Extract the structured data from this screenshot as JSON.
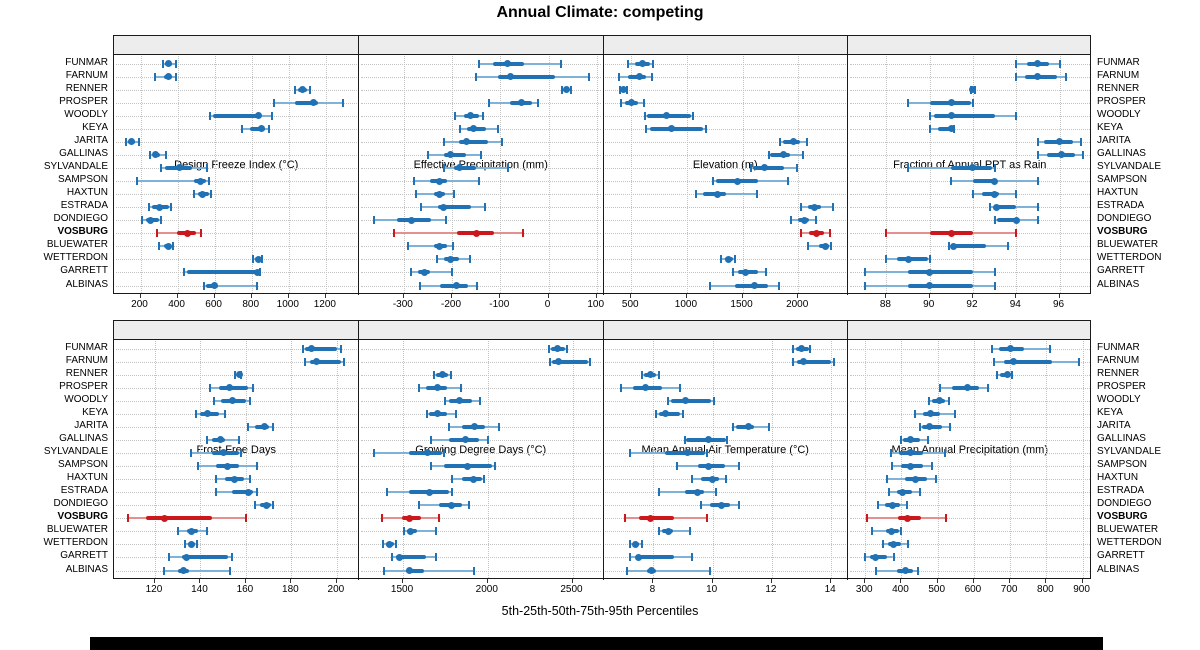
{
  "title": "Annual Climate: competing",
  "caption": "5th-25th-50th-75th-95th Percentiles",
  "colors": {
    "accent_blue": "#2171b5",
    "accent_blue_light": "#7fb2d8",
    "highlight_red": "#cb181d",
    "highlight_red_light": "#e58f8f",
    "strip_bg": "#ededed",
    "panel_border": "#1a1a1a",
    "grid": "#c3c3c3"
  },
  "sites": [
    "FUNMAR",
    "FARNUM",
    "RENNER",
    "PROSPER",
    "WOODLY",
    "KEYA",
    "JARITA",
    "GALLINAS",
    "SYLVANDALE",
    "SAMPSON",
    "HAXTUN",
    "ESTRADA",
    "DONDIEGO",
    "VOSBURG",
    "BLUEWATER",
    "WETTERDON",
    "GARRETT",
    "ALBINAS"
  ],
  "highlight_site": "VOSBURG",
  "chart_data": {
    "type": "dotplot-percentiles",
    "percentile_labels": [
      "5th",
      "25th",
      "50th",
      "75th",
      "95th"
    ],
    "panels": [
      {
        "id": "design-freeze-index",
        "title": "Design Freeze Index (°C)",
        "domain": [
          57,
          1376
        ],
        "ticks": [
          200,
          400,
          600,
          800,
          1000,
          1200
        ],
        "values": [
          [
            322,
            333,
            353,
            371,
            389
          ],
          [
            280,
            326,
            353,
            371,
            389
          ],
          [
            1032,
            1050,
            1076,
            1100,
            1116
          ],
          [
            921,
            1035,
            1133,
            1156,
            1295
          ],
          [
            576,
            590,
            834,
            851,
            910
          ],
          [
            749,
            793,
            855,
            869,
            891
          ],
          [
            124,
            135,
            150,
            171,
            192
          ],
          [
            252,
            266,
            281,
            306,
            340
          ],
          [
            312,
            334,
            412,
            480,
            560
          ],
          [
            181,
            489,
            522,
            554,
            569
          ],
          [
            490,
            509,
            536,
            571,
            582
          ],
          [
            245,
            264,
            300,
            352,
            365
          ],
          [
            210,
            228,
            254,
            300,
            310
          ],
          [
            291,
            398,
            454,
            497,
            528
          ],
          [
            300,
            327,
            350,
            366,
            374
          ],
          [
            809,
            820,
            836,
            849,
            856
          ],
          [
            437,
            452,
            830,
            836,
            845
          ],
          [
            541,
            552,
            600,
            619,
            827
          ]
        ]
      },
      {
        "id": "effective-precipitation",
        "title": "Effective Precipitation (mm)",
        "domain": [
          -394,
          113
        ],
        "ticks": [
          -300,
          -200,
          -100,
          0,
          100
        ],
        "values": [
          [
            -145,
            -116,
            -85,
            -51,
            25
          ],
          [
            -151,
            -104,
            -79,
            14,
            83
          ],
          [
            27,
            31,
            37,
            43,
            47
          ],
          [
            -124,
            -79,
            -57,
            -35,
            -21
          ],
          [
            -193,
            -176,
            -162,
            -145,
            -136
          ],
          [
            -184,
            -169,
            -155,
            -129,
            -104
          ],
          [
            -216,
            -186,
            -171,
            -125,
            -97
          ],
          [
            -249,
            -217,
            -203,
            -172,
            -140
          ],
          [
            -217,
            -197,
            -185,
            -151,
            -84
          ],
          [
            -279,
            -245,
            -226,
            -210,
            -144
          ],
          [
            -274,
            -238,
            -226,
            -215,
            -196
          ],
          [
            -265,
            -230,
            -218,
            -161,
            -131
          ],
          [
            -361,
            -314,
            -285,
            -244,
            -212
          ],
          [
            -321,
            -190,
            -150,
            -114,
            -52
          ],
          [
            -292,
            -238,
            -226,
            -210,
            -198
          ],
          [
            -231,
            -216,
            -203,
            -186,
            -162
          ],
          [
            -286,
            -270,
            -258,
            -245,
            -200
          ],
          [
            -266,
            -224,
            -190,
            -166,
            -148
          ]
        ]
      },
      {
        "id": "elevation",
        "title": "Elevation (m)",
        "domain": [
          246,
          2443
        ],
        "ticks": [
          500,
          1000,
          1500,
          2000
        ],
        "values": [
          [
            470,
            530,
            600,
            665,
            695
          ],
          [
            390,
            470,
            570,
            635,
            690
          ],
          [
            400,
            413,
            432,
            450,
            462
          ],
          [
            410,
            440,
            500,
            560,
            610
          ],
          [
            620,
            645,
            815,
            1038,
            1055
          ],
          [
            630,
            668,
            865,
            1142,
            1172
          ],
          [
            1832,
            1862,
            1957,
            2012,
            2078
          ],
          [
            1737,
            1748,
            1868,
            1922,
            2046
          ],
          [
            1580,
            1594,
            1698,
            1876,
            1990
          ],
          [
            1235,
            1263,
            1451,
            1638,
            1905
          ],
          [
            1085,
            1144,
            1278,
            1353,
            1629
          ],
          [
            2026,
            2086,
            2146,
            2206,
            2316
          ],
          [
            1936,
            1996,
            2056,
            2101,
            2161
          ],
          [
            2028,
            2101,
            2161,
            2236,
            2288
          ],
          [
            2086,
            2190,
            2245,
            2281,
            2296
          ],
          [
            1309,
            1338,
            1376,
            1414,
            1429
          ],
          [
            1414,
            1458,
            1527,
            1638,
            1712
          ],
          [
            1205,
            1428,
            1608,
            1729,
            1831
          ]
        ]
      },
      {
        "id": "fraction-ppt-rain",
        "title": "Fraction of Annual PPT as Rain",
        "domain": [
          86.2,
          97.5
        ],
        "ticks": [
          88,
          90,
          92,
          94,
          96
        ],
        "values": [
          [
            94.0,
            94.5,
            95.0,
            95.5,
            96.0
          ],
          [
            94.0,
            94.4,
            95.0,
            95.9,
            96.3
          ],
          [
            91.9,
            92.0,
            92.0,
            92.0,
            92.1
          ],
          [
            89.0,
            90.0,
            91.0,
            91.9,
            92.0
          ],
          [
            90.0,
            90.2,
            91.0,
            93.0,
            94.0
          ],
          [
            90.0,
            90.4,
            91.0,
            91.0,
            91.1
          ],
          [
            95.0,
            95.3,
            96.0,
            96.6,
            97.0
          ],
          [
            95.0,
            95.4,
            96.1,
            96.7,
            97.1
          ],
          [
            89.0,
            91.0,
            92.0,
            92.9,
            93.0
          ],
          [
            91.0,
            92.0,
            93.0,
            93.1,
            95.0
          ],
          [
            92.0,
            92.4,
            93.0,
            93.2,
            94.0
          ],
          [
            92.8,
            93.0,
            93.1,
            94.0,
            95.0
          ],
          [
            93.0,
            93.1,
            94.0,
            94.1,
            95.0
          ],
          [
            88.0,
            90.0,
            91.0,
            92.0,
            94.0
          ],
          [
            90.9,
            91.0,
            91.1,
            92.6,
            93.6
          ],
          [
            88.0,
            88.5,
            89.0,
            89.9,
            90.0
          ],
          [
            87.0,
            89.0,
            90.0,
            92.0,
            93.0
          ],
          [
            87.0,
            89.0,
            90.0,
            92.0,
            93.0
          ]
        ]
      },
      {
        "id": "frost-free-days",
        "title": "Frost-Free Days",
        "domain": [
          102,
          209.5
        ],
        "ticks": [
          120,
          140,
          160,
          180,
          200
        ],
        "values": [
          [
            185,
            186,
            189,
            200,
            202
          ],
          [
            186,
            188,
            191,
            202,
            203
          ],
          [
            155,
            156,
            157,
            157.5,
            158
          ],
          [
            144,
            148,
            153,
            161,
            163
          ],
          [
            146,
            149,
            154,
            160,
            162
          ],
          [
            138,
            140,
            143,
            148,
            151
          ],
          [
            161,
            164,
            168,
            170,
            172
          ],
          [
            143,
            145,
            149,
            151,
            157
          ],
          [
            136,
            145,
            150,
            157,
            158
          ],
          [
            139,
            147,
            152,
            157,
            165
          ],
          [
            147,
            151,
            155,
            159,
            162
          ],
          [
            147,
            154,
            161,
            163,
            165
          ],
          [
            164,
            166,
            169,
            171,
            172
          ],
          [
            108,
            116,
            124,
            145,
            160
          ],
          [
            130,
            134,
            136,
            139,
            143
          ],
          [
            133,
            134.5,
            136,
            137.5,
            138.5
          ],
          [
            126,
            132,
            134,
            152,
            154
          ],
          [
            124,
            130,
            132.5,
            135,
            153
          ]
        ]
      },
      {
        "id": "growing-degree-days",
        "title": "Growing Degree Days (°C)",
        "domain": [
          1237,
          2680
        ],
        "ticks": [
          1500,
          2000,
          2500
        ],
        "values": [
          [
            2362,
            2374,
            2411,
            2455,
            2469
          ],
          [
            2366,
            2380,
            2417,
            2590,
            2602
          ],
          [
            1683,
            1697,
            1732,
            1767,
            1781
          ],
          [
            1594,
            1634,
            1703,
            1762,
            1840
          ],
          [
            1748,
            1772,
            1835,
            1909,
            1952
          ],
          [
            1644,
            1654,
            1703,
            1762,
            1810
          ],
          [
            1769,
            1850,
            1919,
            1984,
            2066
          ],
          [
            1663,
            1772,
            1866,
            1949,
            1999
          ],
          [
            1329,
            1535,
            1644,
            1731,
            1742
          ],
          [
            1663,
            1742,
            1880,
            2027,
            2043
          ],
          [
            1787,
            1850,
            1913,
            1968,
            1978
          ],
          [
            1406,
            1535,
            1657,
            1771,
            1787
          ],
          [
            1594,
            1712,
            1787,
            1850,
            1890
          ],
          [
            1374,
            1496,
            1539,
            1604,
            1712
          ],
          [
            1506,
            1525,
            1545,
            1585,
            1692
          ],
          [
            1382,
            1398,
            1421,
            1446,
            1461
          ],
          [
            1437,
            1457,
            1480,
            1634,
            1693
          ],
          [
            1388,
            1516,
            1539,
            1624,
            1919
          ]
        ]
      },
      {
        "id": "mean-annual-air-temperature",
        "title": "Mean Annual Air Temperature (°C)",
        "domain": [
          6.3,
          14.55
        ],
        "ticks": [
          8,
          10,
          12,
          14
        ],
        "values": [
          [
            12.7,
            12.8,
            13.0,
            13.25,
            13.3
          ],
          [
            12.7,
            12.85,
            13.05,
            14.0,
            14.1
          ],
          [
            7.6,
            7.7,
            7.9,
            8.1,
            8.2
          ],
          [
            6.9,
            7.3,
            7.75,
            8.3,
            8.9
          ],
          [
            8.5,
            8.6,
            9.1,
            9.95,
            10.05
          ],
          [
            8.1,
            8.2,
            8.4,
            8.9,
            9.0
          ],
          [
            10.7,
            10.8,
            11.2,
            11.4,
            11.9
          ],
          [
            9.05,
            9.1,
            9.85,
            10.45,
            10.5
          ],
          [
            7.2,
            8.4,
            9.15,
            9.75,
            9.8
          ],
          [
            8.8,
            9.5,
            9.85,
            10.4,
            10.9
          ],
          [
            9.3,
            9.6,
            10.0,
            10.2,
            10.45
          ],
          [
            8.2,
            9.05,
            9.5,
            9.7,
            10.1
          ],
          [
            9.6,
            9.9,
            10.3,
            10.6,
            10.9
          ],
          [
            7.05,
            7.5,
            7.9,
            8.7,
            9.8
          ],
          [
            8.2,
            8.3,
            8.5,
            8.65,
            9.25
          ],
          [
            7.2,
            7.3,
            7.4,
            7.5,
            7.6
          ],
          [
            7.2,
            7.4,
            7.5,
            8.7,
            9.3
          ],
          [
            7.1,
            7.8,
            7.95,
            8.1,
            9.9
          ]
        ]
      },
      {
        "id": "mean-annual-precipitation",
        "title": "Mean Annual Precipitation (mm)",
        "domain": [
          251,
          926
        ],
        "ticks": [
          300,
          400,
          500,
          600,
          700,
          800,
          900
        ],
        "values": [
          [
            650,
            668,
            700,
            737,
            810
          ],
          [
            655,
            682,
            710,
            815,
            890
          ],
          [
            663,
            673,
            693,
            702,
            706
          ],
          [
            505,
            540,
            582,
            613,
            640
          ],
          [
            475,
            485,
            505,
            520,
            530
          ],
          [
            438,
            459,
            481,
            507,
            547
          ],
          [
            452,
            457,
            477,
            513,
            535
          ],
          [
            399,
            405,
            426,
            450,
            472
          ],
          [
            370,
            392,
            424,
            460,
            520
          ],
          [
            375,
            400,
            424,
            460,
            485
          ],
          [
            360,
            410,
            438,
            470,
            494
          ],
          [
            365,
            387,
            404,
            428,
            450
          ],
          [
            336,
            355,
            374,
            396,
            416
          ],
          [
            306,
            390,
            416,
            455,
            522
          ],
          [
            320,
            357,
            373,
            394,
            400
          ],
          [
            350,
            362,
            378,
            398,
            417
          ],
          [
            299,
            312,
            328,
            360,
            378
          ],
          [
            330,
            387,
            410,
            432,
            445
          ]
        ]
      }
    ]
  }
}
